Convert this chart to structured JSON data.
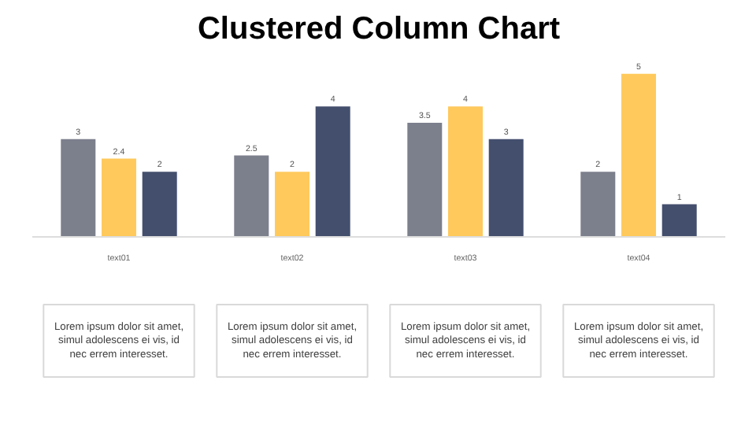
{
  "chart_data": {
    "type": "bar",
    "title": "Clustered Column Chart",
    "categories": [
      "text01",
      "text02",
      "text03",
      "text04"
    ],
    "series": [
      {
        "color": "#7c7f8c",
        "values": [
          3,
          2.5,
          3.5,
          2
        ]
      },
      {
        "color": "#ffc95c",
        "values": [
          2.4,
          2,
          4,
          5
        ]
      },
      {
        "color": "#444f6e",
        "values": [
          2,
          4,
          3,
          1
        ]
      }
    ],
    "data_labels": true,
    "grid": false,
    "annotations": [
      "Lorem ipsum dolor sit amet,\nsimul adolescens ei vis, id\nnec errem interesset.",
      "Lorem ipsum dolor sit amet,\nsimul adolescens ei vis, id\nnec errem interesset.",
      "Lorem ipsum dolor sit amet,\nsimul adolescens ei vis, id\nnec errem interesset.",
      "Lorem ipsum dolor sit amet,\nsimul adolescens ei vis, id\nnec errem interesset."
    ]
  }
}
